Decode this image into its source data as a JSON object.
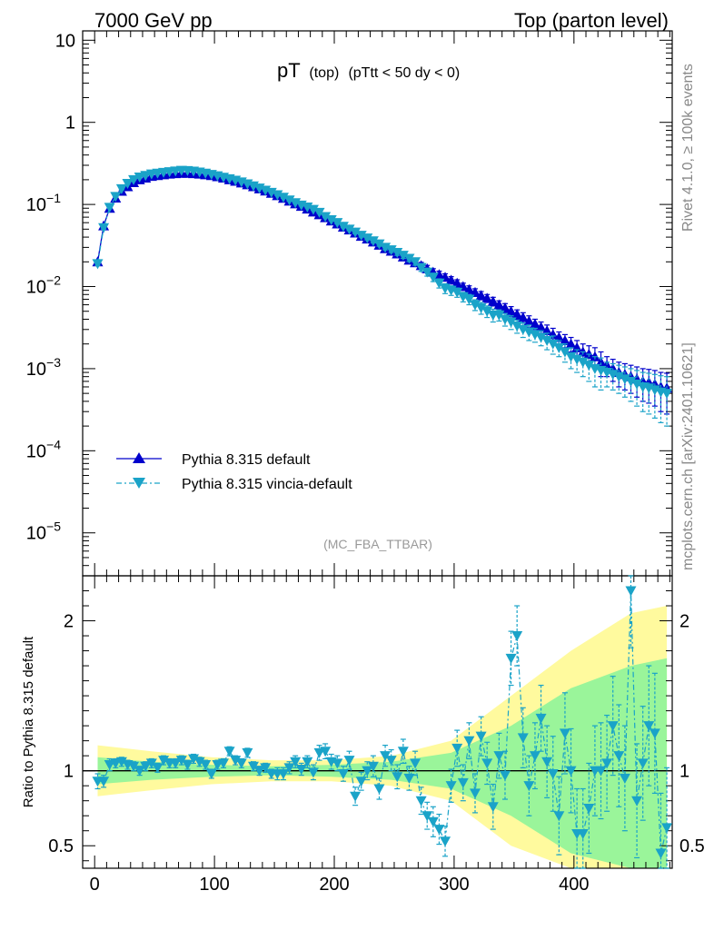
{
  "header": {
    "left": "7000 GeV pp",
    "right": "Top (parton level)"
  },
  "title": {
    "main": "pT",
    "sub1": "(top)",
    "sub2": "(pTtt < 50 dy < 0)"
  },
  "side_labels": {
    "rivet": "Rivet 4.1.0, ≥ 100k events",
    "mcplots": "mcplots.cern.ch [arXiv:2401.10621]"
  },
  "analysis_tag": "(MC_FBA_TTBAR)",
  "ratio_ylabel": "Ratio to Pythia 8.315 default",
  "colors": {
    "default": "#0000cc",
    "vincia": "#1aa3c8",
    "band_yellow": "#fffa9e",
    "band_green": "#9af59a"
  },
  "chart_data": [
    {
      "type": "line",
      "panel": "main",
      "yscale": "log",
      "xlim": [
        -10,
        482
      ],
      "ylim": [
        3e-06,
        13
      ],
      "y_ticks": [
        {
          "v": 10,
          "label": "10"
        },
        {
          "v": 1,
          "label": "1"
        },
        {
          "v": 0.1,
          "base": "10",
          "exp": "−1"
        },
        {
          "v": 0.01,
          "base": "10",
          "exp": "−2"
        },
        {
          "v": 0.001,
          "base": "10",
          "exp": "−3"
        },
        {
          "v": 0.0001,
          "base": "10",
          "exp": "−4"
        },
        {
          "v": 1e-05,
          "base": "10",
          "exp": "−5"
        }
      ],
      "x": [
        2.5,
        7.5,
        12.5,
        17.5,
        22.5,
        27.5,
        32.5,
        37.5,
        42.5,
        47.5,
        52.5,
        57.5,
        62.5,
        67.5,
        72.5,
        77.5,
        82.5,
        87.5,
        92.5,
        97.5,
        102.5,
        107.5,
        112.5,
        117.5,
        122.5,
        127.5,
        132.5,
        137.5,
        142.5,
        147.5,
        152.5,
        157.5,
        162.5,
        167.5,
        172.5,
        177.5,
        182.5,
        187.5,
        192.5,
        197.5,
        202.5,
        207.5,
        212.5,
        217.5,
        222.5,
        227.5,
        232.5,
        237.5,
        242.5,
        247.5,
        252.5,
        257.5,
        262.5,
        267.5,
        272.5,
        277.5,
        282.5,
        287.5,
        292.5,
        297.5,
        302.5,
        307.5,
        312.5,
        317.5,
        322.5,
        327.5,
        332.5,
        337.5,
        342.5,
        347.5,
        352.5,
        357.5,
        362.5,
        367.5,
        372.5,
        377.5,
        382.5,
        387.5,
        392.5,
        397.5,
        402.5,
        407.5,
        412.5,
        417.5,
        422.5,
        427.5,
        432.5,
        437.5,
        442.5,
        447.5,
        452.5,
        457.5,
        462.5,
        467.5,
        472.5,
        477.5
      ],
      "series": [
        {
          "name": "Pythia 8.315 default",
          "marker": "triangle-up",
          "values": [
            0.02,
            0.055,
            0.09,
            0.12,
            0.145,
            0.165,
            0.185,
            0.2,
            0.21,
            0.22,
            0.225,
            0.23,
            0.235,
            0.238,
            0.24,
            0.24,
            0.238,
            0.235,
            0.23,
            0.225,
            0.218,
            0.21,
            0.2,
            0.192,
            0.183,
            0.174,
            0.165,
            0.155,
            0.146,
            0.137,
            0.128,
            0.119,
            0.11,
            0.102,
            0.095,
            0.088,
            0.081,
            0.075,
            0.069,
            0.063,
            0.058,
            0.053,
            0.049,
            0.045,
            0.041,
            0.038,
            0.035,
            0.032,
            0.029,
            0.027,
            0.025,
            0.023,
            0.021,
            0.0195,
            0.018,
            0.0165,
            0.015,
            0.014,
            0.013,
            0.012,
            0.011,
            0.01,
            0.0092,
            0.0085,
            0.0078,
            0.0072,
            0.0066,
            0.006,
            0.0055,
            0.005,
            0.0046,
            0.0042,
            0.0038,
            0.0035,
            0.0032,
            0.0029,
            0.0026,
            0.0024,
            0.0022,
            0.002,
            0.0018,
            0.0016,
            0.0015,
            0.0014,
            0.0012,
            0.0011,
            0.001,
            0.0009,
            0.00085,
            0.0008,
            0.00075,
            0.0007,
            0.00068,
            0.00065,
            0.0006,
            0.00058
          ],
          "errors": [
            0.001,
            0.002,
            0.003,
            0.003,
            0.004,
            0.004,
            0.004,
            0.004,
            0.004,
            0.004,
            0.004,
            0.004,
            0.004,
            0.004,
            0.004,
            0.004,
            0.004,
            0.004,
            0.004,
            0.004,
            0.004,
            0.004,
            0.004,
            0.004,
            0.003,
            0.003,
            0.003,
            0.003,
            0.003,
            0.003,
            0.003,
            0.003,
            0.003,
            0.002,
            0.002,
            0.002,
            0.002,
            0.002,
            0.002,
            0.002,
            0.002,
            0.002,
            0.002,
            0.002,
            0.002,
            0.002,
            0.002,
            0.002,
            0.002,
            0.002,
            0.002,
            0.002,
            0.0018,
            0.0018,
            0.0017,
            0.0016,
            0.0015,
            0.0014,
            0.0013,
            0.0012,
            0.0011,
            0.001,
            0.001,
            0.0009,
            0.0009,
            0.0008,
            0.0008,
            0.0007,
            0.0007,
            0.0007,
            0.0006,
            0.0006,
            0.0006,
            0.0005,
            0.0005,
            0.0005,
            0.0005,
            0.0004,
            0.0004,
            0.0004,
            0.0004,
            0.0004,
            0.0004,
            0.0004,
            0.0004,
            0.0003,
            0.0003,
            0.0003,
            0.0003,
            0.0003,
            0.0003,
            0.0003,
            0.0003,
            0.0003,
            0.0003,
            0.0003
          ]
        },
        {
          "name": "Pythia 8.315 vincia-default",
          "marker": "triangle-down",
          "values": [
            0.019,
            0.052,
            0.092,
            0.125,
            0.155,
            0.18,
            0.2,
            0.215,
            0.225,
            0.235,
            0.24,
            0.245,
            0.25,
            0.255,
            0.26,
            0.258,
            0.254,
            0.248,
            0.24,
            0.232,
            0.223,
            0.214,
            0.205,
            0.197,
            0.188,
            0.178,
            0.168,
            0.158,
            0.149,
            0.14,
            0.131,
            0.122,
            0.113,
            0.105,
            0.098,
            0.093,
            0.087,
            0.08,
            0.071,
            0.065,
            0.06,
            0.054,
            0.05,
            0.046,
            0.042,
            0.039,
            0.036,
            0.033,
            0.03,
            0.028,
            0.026,
            0.024,
            0.022,
            0.02,
            0.017,
            0.015,
            0.013,
            0.011,
            0.0095,
            0.009,
            0.0085,
            0.0075,
            0.007,
            0.006,
            0.0055,
            0.005,
            0.0045,
            0.0045,
            0.004,
            0.0037,
            0.0033,
            0.003,
            0.0028,
            0.0026,
            0.0024,
            0.0022,
            0.002,
            0.0018,
            0.0016,
            0.0014,
            0.0013,
            0.0012,
            0.0011,
            0.001,
            0.00095,
            0.0009,
            0.00085,
            0.0008,
            0.00075,
            0.0007,
            0.00065,
            0.0006,
            0.00058,
            0.00055,
            0.00052,
            0.0005
          ],
          "errors": [
            0.001,
            0.002,
            0.003,
            0.003,
            0.004,
            0.004,
            0.004,
            0.004,
            0.004,
            0.004,
            0.004,
            0.004,
            0.004,
            0.004,
            0.004,
            0.004,
            0.004,
            0.004,
            0.004,
            0.004,
            0.004,
            0.004,
            0.004,
            0.004,
            0.003,
            0.003,
            0.003,
            0.003,
            0.003,
            0.003,
            0.003,
            0.003,
            0.003,
            0.002,
            0.002,
            0.002,
            0.002,
            0.002,
            0.002,
            0.002,
            0.002,
            0.002,
            0.002,
            0.002,
            0.002,
            0.002,
            0.002,
            0.002,
            0.002,
            0.002,
            0.002,
            0.002,
            0.0018,
            0.0018,
            0.0017,
            0.0016,
            0.0015,
            0.0014,
            0.0013,
            0.0012,
            0.0011,
            0.001,
            0.001,
            0.0009,
            0.0009,
            0.0008,
            0.0008,
            0.0007,
            0.0007,
            0.0007,
            0.0006,
            0.0006,
            0.0006,
            0.0005,
            0.0005,
            0.0005,
            0.0005,
            0.0004,
            0.0004,
            0.0004,
            0.0004,
            0.0004,
            0.0004,
            0.0004,
            0.0004,
            0.0003,
            0.0003,
            0.0003,
            0.0003,
            0.0003,
            0.0003,
            0.0003,
            0.0003,
            0.0003,
            0.0003,
            0.0003
          ]
        }
      ],
      "legend": [
        "Pythia 8.315 default",
        "Pythia 8.315 vincia-default"
      ]
    },
    {
      "type": "line",
      "panel": "ratio",
      "xlim": [
        -10,
        482
      ],
      "ylim": [
        0.35,
        2.3
      ],
      "y_ticks": [
        0.5,
        1,
        2
      ],
      "x_ticks": [
        0,
        100,
        200,
        300,
        400
      ],
      "ylabel": "Ratio to Pythia 8.315 default",
      "band_x": [
        2.5,
        47.5,
        97.5,
        147.5,
        197.5,
        247.5,
        297.5,
        347.5,
        397.5,
        447.5,
        477.5
      ],
      "band_yellow_halfwidth": [
        0.17,
        0.13,
        0.09,
        0.07,
        0.07,
        0.1,
        0.2,
        0.5,
        0.8,
        1.05,
        1.1
      ],
      "band_green_halfwidth": [
        0.09,
        0.06,
        0.04,
        0.03,
        0.04,
        0.06,
        0.12,
        0.3,
        0.55,
        0.7,
        0.75
      ],
      "vincia_ratio": {
        "x": [
          2.5,
          7.5,
          12.5,
          17.5,
          22.5,
          27.5,
          32.5,
          37.5,
          42.5,
          47.5,
          52.5,
          57.5,
          62.5,
          67.5,
          72.5,
          77.5,
          82.5,
          87.5,
          92.5,
          97.5,
          102.5,
          107.5,
          112.5,
          117.5,
          122.5,
          127.5,
          132.5,
          137.5,
          142.5,
          147.5,
          152.5,
          157.5,
          162.5,
          167.5,
          172.5,
          177.5,
          182.5,
          187.5,
          192.5,
          197.5,
          202.5,
          207.5,
          212.5,
          217.5,
          222.5,
          227.5,
          232.5,
          237.5,
          242.5,
          247.5,
          252.5,
          257.5,
          262.5,
          267.5,
          272.5,
          277.5,
          282.5,
          287.5,
          292.5,
          297.5,
          302.5,
          307.5,
          312.5,
          317.5,
          322.5,
          327.5,
          332.5,
          337.5,
          342.5,
          347.5,
          352.5,
          357.5,
          362.5,
          367.5,
          372.5,
          377.5,
          382.5,
          387.5,
          392.5,
          397.5,
          402.5,
          407.5,
          412.5,
          417.5,
          422.5,
          427.5,
          432.5,
          437.5,
          442.5,
          447.5,
          452.5,
          457.5,
          462.5,
          467.5,
          472.5,
          477.5
        ],
        "values": [
          0.93,
          0.93,
          1.04,
          1.05,
          1.06,
          1.04,
          1.03,
          1.0,
          1.03,
          1.05,
          1.02,
          1.07,
          1.05,
          1.05,
          1.07,
          1.04,
          1.08,
          1.06,
          1.04,
          0.98,
          1.04,
          1.05,
          1.13,
          1.07,
          1.05,
          1.12,
          1.03,
          1.0,
          1.02,
          0.98,
          0.98,
          0.98,
          1.02,
          1.06,
          1.01,
          1.06,
          0.99,
          1.12,
          1.13,
          1.06,
          1.05,
          0.98,
          1.07,
          0.83,
          0.93,
          1.0,
          1.03,
          0.88,
          1.1,
          1.07,
          0.96,
          1.13,
          0.95,
          1.05,
          0.8,
          0.7,
          0.66,
          0.61,
          0.53,
          0.9,
          1.15,
          0.92,
          1.2,
          0.85,
          1.23,
          1.05,
          0.76,
          1.1,
          0.97,
          1.75,
          1.9,
          1.22,
          0.9,
          1.1,
          1.35,
          1.06,
          0.98,
          0.7,
          1.25,
          1.0,
          0.58,
          0.58,
          0.75,
          1.0,
          1.0,
          1.05,
          1.3,
          1.1,
          0.95,
          2.2,
          0.8,
          1.05,
          1.3,
          1.25,
          0.45,
          0.62
        ],
        "errors": [
          0.05,
          0.04,
          0.04,
          0.03,
          0.03,
          0.03,
          0.03,
          0.03,
          0.03,
          0.03,
          0.03,
          0.03,
          0.03,
          0.03,
          0.03,
          0.03,
          0.03,
          0.03,
          0.03,
          0.03,
          0.03,
          0.03,
          0.03,
          0.03,
          0.03,
          0.03,
          0.03,
          0.03,
          0.03,
          0.03,
          0.04,
          0.04,
          0.04,
          0.04,
          0.04,
          0.04,
          0.05,
          0.05,
          0.05,
          0.05,
          0.05,
          0.05,
          0.06,
          0.06,
          0.06,
          0.06,
          0.07,
          0.07,
          0.07,
          0.07,
          0.08,
          0.08,
          0.08,
          0.08,
          0.09,
          0.09,
          0.1,
          0.1,
          0.1,
          0.11,
          0.12,
          0.12,
          0.12,
          0.13,
          0.13,
          0.14,
          0.15,
          0.15,
          0.16,
          0.18,
          0.2,
          0.2,
          0.2,
          0.22,
          0.22,
          0.24,
          0.25,
          0.26,
          0.27,
          0.28,
          0.3,
          0.3,
          0.3,
          0.3,
          0.32,
          0.32,
          0.33,
          0.34,
          0.35,
          0.38,
          0.38,
          0.38,
          0.4,
          0.4,
          0.4,
          0.4
        ]
      }
    }
  ]
}
